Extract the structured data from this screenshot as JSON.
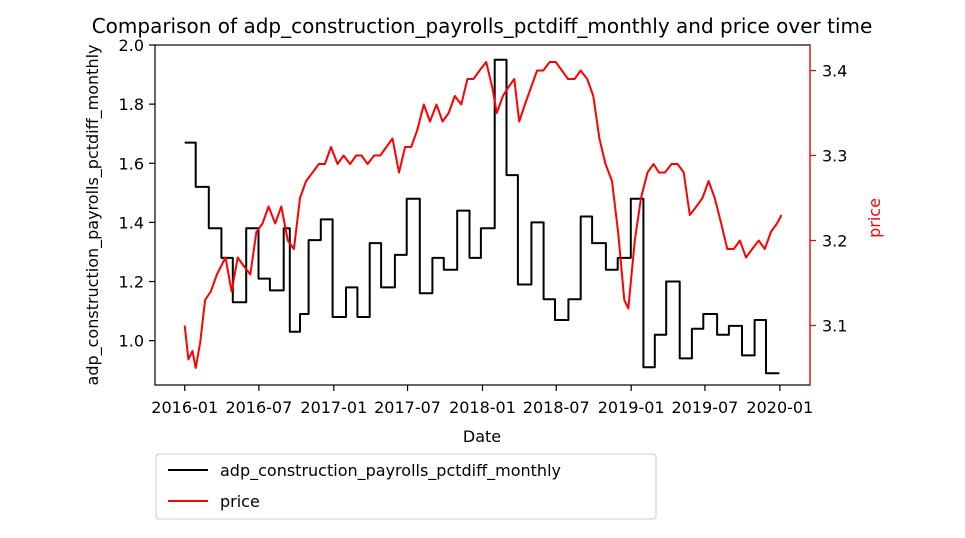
{
  "chart_data": {
    "type": "line",
    "title": "Comparison of adp_construction_payrolls_pctdiff_monthly and price over time",
    "xlabel": "Date",
    "ylabel_left": "adp_construction_payrolls_pctdiff_monthly",
    "ylabel_right": "price",
    "x_ticks": [
      "2016-01",
      "2016-07",
      "2017-01",
      "2017-07",
      "2018-01",
      "2018-07",
      "2019-01",
      "2019-07",
      "2020-01"
    ],
    "y_left_ticks": [
      "1.0",
      "1.2",
      "1.4",
      "1.6",
      "1.8",
      "2.0"
    ],
    "y_right_ticks": [
      "3.1",
      "3.2",
      "3.3",
      "3.4"
    ],
    "y_left_range": [
      0.85,
      2.0
    ],
    "y_right_range": [
      3.03,
      3.43
    ],
    "x_range": [
      "2015-10-20",
      "2020-03-15"
    ],
    "grid": false,
    "legend_placement": "below-left",
    "series": [
      {
        "name": "adp_construction_payrolls_pctdiff_monthly",
        "axis": "left",
        "color": "#000000",
        "step": true,
        "points": [
          [
            "2016-01-01",
            1.67
          ],
          [
            "2016-01-28",
            1.52
          ],
          [
            "2016-02-29",
            1.38
          ],
          [
            "2016-03-31",
            1.28
          ],
          [
            "2016-04-28",
            1.13
          ],
          [
            "2016-05-31",
            1.38
          ],
          [
            "2016-06-30",
            1.21
          ],
          [
            "2016-07-28",
            1.17
          ],
          [
            "2016-08-31",
            1.38
          ],
          [
            "2016-09-15",
            1.03
          ],
          [
            "2016-10-10",
            1.09
          ],
          [
            "2016-10-31",
            1.34
          ],
          [
            "2016-11-30",
            1.41
          ],
          [
            "2016-12-29",
            1.08
          ],
          [
            "2017-01-31",
            1.18
          ],
          [
            "2017-02-28",
            1.08
          ],
          [
            "2017-03-30",
            1.33
          ],
          [
            "2017-04-27",
            1.18
          ],
          [
            "2017-05-31",
            1.29
          ],
          [
            "2017-06-29",
            1.48
          ],
          [
            "2017-07-31",
            1.16
          ],
          [
            "2017-08-31",
            1.28
          ],
          [
            "2017-09-28",
            1.24
          ],
          [
            "2017-10-31",
            1.44
          ],
          [
            "2017-11-30",
            1.28
          ],
          [
            "2017-12-28",
            1.38
          ],
          [
            "2018-01-31",
            1.95
          ],
          [
            "2018-03-01",
            1.56
          ],
          [
            "2018-03-29",
            1.19
          ],
          [
            "2018-05-01",
            1.4
          ],
          [
            "2018-05-31",
            1.14
          ],
          [
            "2018-06-28",
            1.07
          ],
          [
            "2018-07-31",
            1.14
          ],
          [
            "2018-08-30",
            1.42
          ],
          [
            "2018-09-27",
            1.33
          ],
          [
            "2018-10-31",
            1.24
          ],
          [
            "2018-11-29",
            1.28
          ],
          [
            "2018-12-31",
            1.48
          ],
          [
            "2019-01-31",
            0.91
          ],
          [
            "2019-02-28",
            1.02
          ],
          [
            "2019-03-28",
            1.2
          ],
          [
            "2019-04-30",
            0.94
          ],
          [
            "2019-05-30",
            1.04
          ],
          [
            "2019-06-27",
            1.09
          ],
          [
            "2019-07-31",
            1.02
          ],
          [
            "2019-08-29",
            1.05
          ],
          [
            "2019-09-30",
            0.95
          ],
          [
            "2019-10-31",
            1.07
          ],
          [
            "2019-11-28",
            0.89
          ],
          [
            "2019-12-31",
            0.89
          ]
        ]
      },
      {
        "name": "price",
        "axis": "right",
        "color": "#ff0000",
        "step": false,
        "points": [
          [
            "2016-01-01",
            3.1
          ],
          [
            "2016-01-10",
            3.06
          ],
          [
            "2016-01-20",
            3.07
          ],
          [
            "2016-01-28",
            3.05
          ],
          [
            "2016-02-08",
            3.08
          ],
          [
            "2016-02-20",
            3.13
          ],
          [
            "2016-03-05",
            3.14
          ],
          [
            "2016-03-20",
            3.16
          ],
          [
            "2016-04-10",
            3.18
          ],
          [
            "2016-04-25",
            3.14
          ],
          [
            "2016-05-10",
            3.18
          ],
          [
            "2016-05-25",
            3.17
          ],
          [
            "2016-06-10",
            3.16
          ],
          [
            "2016-06-25",
            3.21
          ],
          [
            "2016-07-10",
            3.22
          ],
          [
            "2016-07-25",
            3.24
          ],
          [
            "2016-08-10",
            3.22
          ],
          [
            "2016-08-25",
            3.24
          ],
          [
            "2016-09-10",
            3.2
          ],
          [
            "2016-09-25",
            3.19
          ],
          [
            "2016-10-10",
            3.25
          ],
          [
            "2016-10-25",
            3.27
          ],
          [
            "2016-11-10",
            3.28
          ],
          [
            "2016-11-25",
            3.29
          ],
          [
            "2016-12-10",
            3.29
          ],
          [
            "2016-12-25",
            3.31
          ],
          [
            "2017-01-10",
            3.29
          ],
          [
            "2017-01-25",
            3.3
          ],
          [
            "2017-02-10",
            3.29
          ],
          [
            "2017-02-25",
            3.3
          ],
          [
            "2017-03-10",
            3.3
          ],
          [
            "2017-03-25",
            3.29
          ],
          [
            "2017-04-10",
            3.3
          ],
          [
            "2017-04-25",
            3.3
          ],
          [
            "2017-05-10",
            3.31
          ],
          [
            "2017-05-25",
            3.32
          ],
          [
            "2017-06-10",
            3.28
          ],
          [
            "2017-06-25",
            3.31
          ],
          [
            "2017-07-10",
            3.31
          ],
          [
            "2017-07-25",
            3.33
          ],
          [
            "2017-08-10",
            3.36
          ],
          [
            "2017-08-25",
            3.34
          ],
          [
            "2017-09-10",
            3.36
          ],
          [
            "2017-09-25",
            3.34
          ],
          [
            "2017-10-10",
            3.35
          ],
          [
            "2017-10-25",
            3.37
          ],
          [
            "2017-11-10",
            3.36
          ],
          [
            "2017-11-25",
            3.39
          ],
          [
            "2017-12-10",
            3.39
          ],
          [
            "2017-12-25",
            3.4
          ],
          [
            "2018-01-10",
            3.41
          ],
          [
            "2018-01-25",
            3.38
          ],
          [
            "2018-02-05",
            3.35
          ],
          [
            "2018-02-20",
            3.37
          ],
          [
            "2018-03-05",
            3.38
          ],
          [
            "2018-03-20",
            3.39
          ],
          [
            "2018-04-01",
            3.34
          ],
          [
            "2018-04-15",
            3.36
          ],
          [
            "2018-04-30",
            3.38
          ],
          [
            "2018-05-15",
            3.4
          ],
          [
            "2018-05-30",
            3.4
          ],
          [
            "2018-06-15",
            3.41
          ],
          [
            "2018-06-30",
            3.41
          ],
          [
            "2018-07-15",
            3.4
          ],
          [
            "2018-07-30",
            3.39
          ],
          [
            "2018-08-15",
            3.39
          ],
          [
            "2018-08-30",
            3.4
          ],
          [
            "2018-09-15",
            3.39
          ],
          [
            "2018-09-30",
            3.37
          ],
          [
            "2018-10-15",
            3.32
          ],
          [
            "2018-10-30",
            3.29
          ],
          [
            "2018-11-15",
            3.27
          ],
          [
            "2018-11-30",
            3.21
          ],
          [
            "2018-12-15",
            3.13
          ],
          [
            "2018-12-25",
            3.12
          ],
          [
            "2019-01-10",
            3.2
          ],
          [
            "2019-01-25",
            3.25
          ],
          [
            "2019-02-10",
            3.28
          ],
          [
            "2019-02-25",
            3.29
          ],
          [
            "2019-03-10",
            3.28
          ],
          [
            "2019-03-25",
            3.28
          ],
          [
            "2019-04-10",
            3.29
          ],
          [
            "2019-04-25",
            3.29
          ],
          [
            "2019-05-10",
            3.28
          ],
          [
            "2019-05-25",
            3.23
          ],
          [
            "2019-06-10",
            3.24
          ],
          [
            "2019-06-25",
            3.25
          ],
          [
            "2019-07-10",
            3.27
          ],
          [
            "2019-07-25",
            3.25
          ],
          [
            "2019-08-10",
            3.22
          ],
          [
            "2019-08-25",
            3.19
          ],
          [
            "2019-09-10",
            3.19
          ],
          [
            "2019-09-25",
            3.2
          ],
          [
            "2019-10-10",
            3.18
          ],
          [
            "2019-10-25",
            3.19
          ],
          [
            "2019-11-10",
            3.2
          ],
          [
            "2019-11-25",
            3.19
          ],
          [
            "2019-12-10",
            3.21
          ],
          [
            "2019-12-25",
            3.22
          ],
          [
            "2020-01-05",
            3.23
          ]
        ]
      }
    ]
  }
}
